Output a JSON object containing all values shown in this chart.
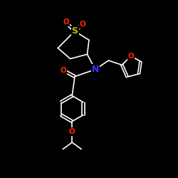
{
  "background": "#000000",
  "bond_color": "#ffffff",
  "N_color": "#3333ff",
  "O_color": "#ff2200",
  "S_color": "#ccbb00",
  "bond_width": 1.2,
  "font_size_atom": 7.5,
  "figsize": [
    2.5,
    2.5
  ],
  "dpi": 100,
  "xlim": [
    0,
    10
  ],
  "ylim": [
    0,
    10
  ]
}
